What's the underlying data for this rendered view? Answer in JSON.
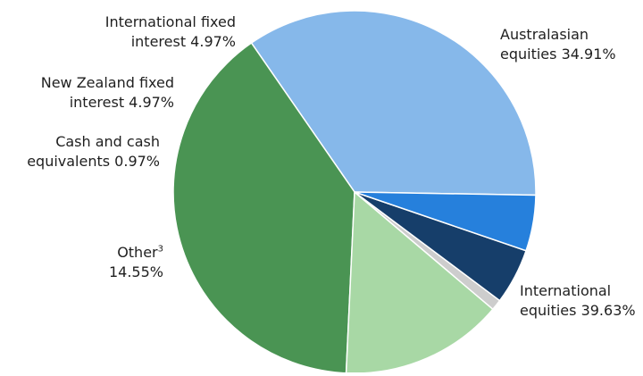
{
  "chart_data": {
    "type": "pie",
    "slices": [
      {
        "key": "australasian",
        "label_lines": [
          "Australasian",
          "equities 34.91%"
        ],
        "value": 34.91,
        "color": "#86b8ea"
      },
      {
        "key": "intl_equities",
        "label_lines": [
          "International",
          "equities 39.63%"
        ],
        "value": 39.63,
        "color": "#4a9453"
      },
      {
        "key": "other",
        "label_lines": [
          "Other",
          "14.55%"
        ],
        "label_sup": "3",
        "value": 14.55,
        "color": "#a8d8a5"
      },
      {
        "key": "cash",
        "label_lines": [
          "Cash and cash",
          "equivalents 0.97%"
        ],
        "value": 0.97,
        "color": "#cdcdcd"
      },
      {
        "key": "nz_fixed",
        "label_lines": [
          "New Zealand fixed",
          "interest 4.97%"
        ],
        "value": 4.97,
        "color": "#163e6a"
      },
      {
        "key": "intl_fixed",
        "label_lines": [
          "International fixed",
          "interest 4.97%"
        ],
        "value": 4.97,
        "color": "#2680dc"
      }
    ]
  }
}
